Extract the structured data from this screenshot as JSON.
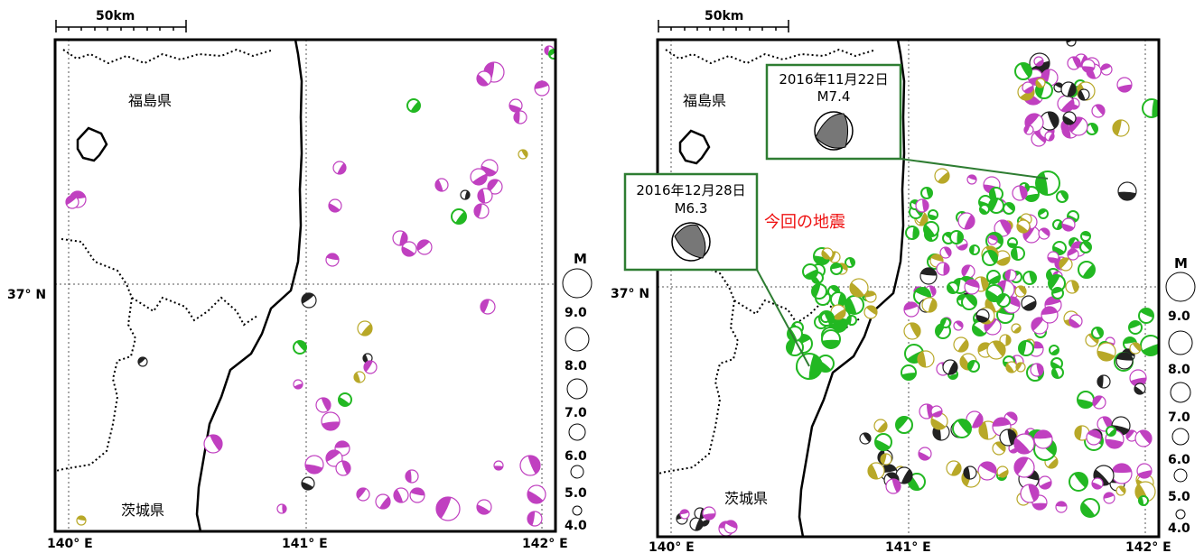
{
  "scale_label": "50km",
  "prefectures": {
    "fukushima": "福島県",
    "ibaraki": "茨城県"
  },
  "lat_label": "37° N",
  "lon_labels": [
    "140° E",
    "141° E",
    "142° E"
  ],
  "mag_legend": {
    "title": "M",
    "values": [
      "9.0",
      "8.0",
      "7.0",
      "6.0",
      "5.0",
      "4.0"
    ]
  },
  "callouts": {
    "event1": {
      "date": "2016年11月22日",
      "mag": "M7.4"
    },
    "event2": {
      "date": "2016年12月28日",
      "mag": "M6.3"
    }
  },
  "current_quake_label": "今回の地震",
  "colors": {
    "magenta": "#c040c0",
    "green": "#22b822",
    "olive": "#b8a828",
    "black": "#222222",
    "box": "#2e7d32",
    "red": "#ee1111"
  }
}
